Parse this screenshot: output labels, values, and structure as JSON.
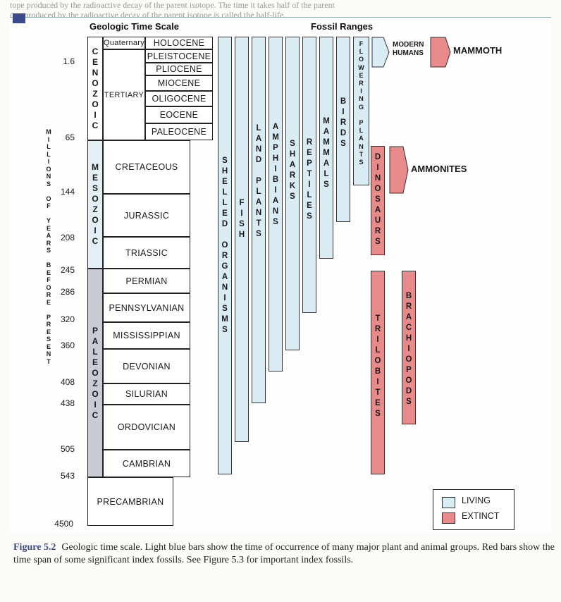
{
  "background_text": [
    "tope produced by the radioactive decay of the parent isotope. The time it takes half of the parent",
    "ope produced by the radioactive decay of the parent isotope is called the half-life."
  ],
  "headers": {
    "time_scale": "Geologic Time Scale",
    "fossil_ranges": "Fossil Ranges"
  },
  "axis_label": "MILLIONS OF YEARS BEFORE PRESENT",
  "ages": [
    "1.6",
    "65",
    "144",
    "208",
    "245",
    "286",
    "320",
    "360",
    "408",
    "438",
    "505",
    "543",
    "4500"
  ],
  "eras": {
    "cenozoic": "CENOZOIC",
    "mesozoic": "MESOZOIC",
    "paleozoic": "PALEOZOIC"
  },
  "periods": {
    "quaternary": "Quaternary",
    "tertiary": "TERTIARY",
    "cretaceous": "CRETACEOUS",
    "jurassic": "JURASSIC",
    "triassic": "TRIASSIC",
    "permian": "PERMIAN",
    "pennsylvanian": "PENNSYLVANIAN",
    "mississippian": "MISSISSIPPIAN",
    "devonian": "DEVONIAN",
    "silurian": "SILURIAN",
    "ordovician": "ORDOVICIAN",
    "cambrian": "CAMBRIAN",
    "precambrian": "PRECAMBRIAN"
  },
  "epochs": {
    "holocene": "HOLOCENE",
    "pleistocene": "PLEISTOCENE",
    "pliocene": "PLIOCENE",
    "miocene": "MIOCENE",
    "oligocene": "OLIGOCENE",
    "eocene": "EOCENE",
    "paleocene": "PALEOCENE"
  },
  "fossil_groups": {
    "shelled_organisms": "SHELLED ORGANISMS",
    "fish": "FISH",
    "land_plants": "LAND PLANTS",
    "amphibians": "AMPHIBIANS",
    "sharks": "SHARKS",
    "reptiles": "REPTILES",
    "mammals": "MAMMALS",
    "birds": "BIRDS",
    "flowering_plants": "FLOWERING PLANTS",
    "modern_humans": "MODERN HUMANS",
    "mammoth": "MAMMOTH",
    "dinosaurs": "DINOSAURS",
    "ammonites": "AMMONITES",
    "trilobites": "TRILOBITES",
    "brachiopods": "BRACHIOPODS"
  },
  "legend": {
    "living": "LIVING",
    "extinct": "EXTINCT"
  },
  "colors": {
    "living": "#d9ecf4",
    "extinct": "#e8898a",
    "accent": "#3b4a8f"
  },
  "caption": {
    "label": "Figure 5.2",
    "text": "Geologic time scale. Light blue bars show the time of occurrence of many major plant and animal groups. Red bars show the time span of some significant index fossils. See Figure 5.3 for important index fossils."
  }
}
